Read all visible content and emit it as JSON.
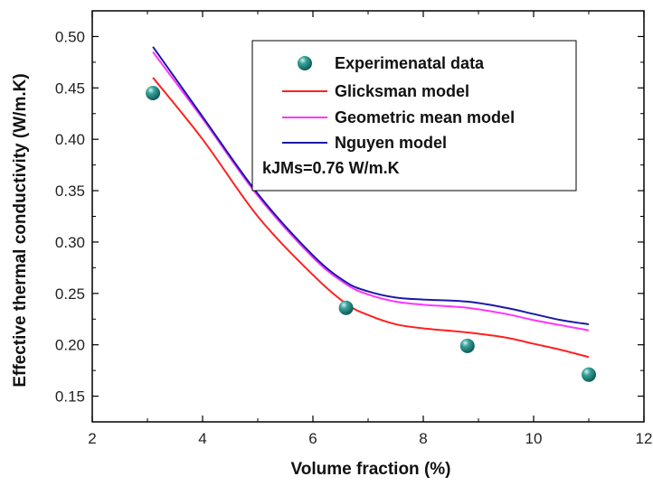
{
  "chart_data": {
    "type": "line",
    "xlabel": "Volume fraction (%)",
    "ylabel": "Effective thermal conductivity (W/m.K)",
    "xlim": [
      2,
      12
    ],
    "ylim": [
      0.125,
      0.525
    ],
    "xticks": [
      2,
      4,
      6,
      8,
      10,
      12
    ],
    "yticks": [
      "0.15",
      "0.20",
      "0.25",
      "0.30",
      "0.35",
      "0.40",
      "0.45",
      "0.50"
    ],
    "ytick_values": [
      0.15,
      0.2,
      0.25,
      0.3,
      0.35,
      0.4,
      0.45,
      0.5
    ],
    "grid": false,
    "legend_position": "top-right",
    "annotation": "kJMs=0.76 W/m.K",
    "series": [
      {
        "name": "Experimenatal data",
        "kind": "scatter",
        "color": "#1f8a84",
        "x": [
          3.1,
          6.6,
          8.8,
          11.0
        ],
        "y": [
          0.445,
          0.236,
          0.199,
          0.171
        ]
      },
      {
        "name": "Glicksman model",
        "kind": "line",
        "color": "#ff2020",
        "x": [
          3.1,
          4.0,
          5.0,
          6.0,
          6.6,
          7.0,
          7.5,
          8.0,
          8.8,
          9.5,
          10.0,
          10.5,
          11.0
        ],
        "y": [
          0.46,
          0.4,
          0.325,
          0.268,
          0.24,
          0.229,
          0.22,
          0.216,
          0.212,
          0.207,
          0.201,
          0.195,
          0.188
        ]
      },
      {
        "name": "Geometric mean model",
        "kind": "line",
        "color": "#ff33ff",
        "x": [
          3.1,
          4.0,
          5.0,
          6.0,
          6.6,
          7.0,
          7.5,
          8.0,
          8.8,
          9.5,
          10.0,
          10.5,
          11.0
        ],
        "y": [
          0.485,
          0.42,
          0.345,
          0.285,
          0.259,
          0.249,
          0.242,
          0.239,
          0.236,
          0.23,
          0.224,
          0.219,
          0.214
        ]
      },
      {
        "name": "Nguyen model",
        "kind": "line",
        "color": "#1a1aa6",
        "x": [
          3.1,
          4.0,
          5.0,
          6.0,
          6.6,
          7.0,
          7.5,
          8.0,
          8.8,
          9.5,
          10.0,
          10.5,
          11.0
        ],
        "y": [
          0.49,
          0.422,
          0.347,
          0.287,
          0.261,
          0.252,
          0.246,
          0.244,
          0.242,
          0.236,
          0.23,
          0.224,
          0.22
        ]
      }
    ]
  }
}
